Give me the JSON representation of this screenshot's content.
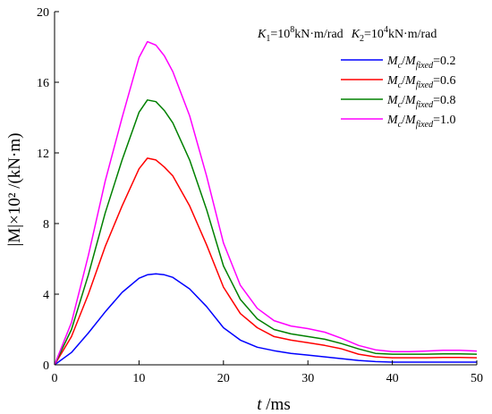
{
  "chart_data": {
    "type": "line",
    "xlabel": {
      "var": "t",
      "unit": " /ms"
    },
    "ylabel": {
      "text": "|M|×10² /(kN·m)"
    },
    "xlim": [
      0,
      50
    ],
    "ylim": [
      0,
      20
    ],
    "xticks": [
      "0",
      "10",
      "20",
      "30",
      "40",
      "50"
    ],
    "yticks": [
      "0",
      "4",
      "8",
      "12",
      "16",
      "20"
    ],
    "grid": false,
    "legend_position": "top-right",
    "annotation": {
      "k1_sym": "K",
      "k1_sub": "1",
      "k1_mid": "=10",
      "k1_exp": "8",
      "k1_unit": "kN·m/rad",
      "k2_sym": "K",
      "k2_sub": "2",
      "k2_mid": "=10",
      "k2_exp": "4",
      "k2_unit": "kN·m/rad"
    },
    "legend_labels": {
      "mc": "M",
      "mc_sub": "c",
      "slash": "/",
      "mf": "M",
      "mf_sub": "fixed"
    },
    "series": [
      {
        "name": "Mc/Mfixed=0.2",
        "value_label": "=0.2",
        "color": "#0000ff",
        "x": [
          0,
          2,
          4,
          6,
          8,
          10,
          11,
          12,
          13,
          14,
          16,
          18,
          20,
          22,
          24,
          26,
          28,
          30,
          32,
          34,
          36,
          38,
          40,
          42,
          44,
          46,
          48,
          50
        ],
        "y": [
          0,
          0.7,
          1.8,
          3.0,
          4.1,
          4.9,
          5.1,
          5.15,
          5.1,
          4.95,
          4.3,
          3.3,
          2.1,
          1.4,
          1.0,
          0.8,
          0.65,
          0.55,
          0.45,
          0.35,
          0.25,
          0.18,
          0.15,
          0.15,
          0.15,
          0.15,
          0.15,
          0.15
        ]
      },
      {
        "name": "Mc/Mfixed=0.6",
        "value_label": "=0.6",
        "color": "#ff0000",
        "x": [
          0,
          2,
          4,
          6,
          8,
          10,
          11,
          12,
          13,
          14,
          16,
          18,
          20,
          22,
          24,
          26,
          28,
          30,
          32,
          34,
          36,
          38,
          40,
          42,
          44,
          46,
          48,
          50
        ],
        "y": [
          0,
          1.6,
          4.0,
          6.7,
          9.0,
          11.1,
          11.7,
          11.6,
          11.2,
          10.7,
          9.0,
          6.8,
          4.4,
          2.9,
          2.1,
          1.6,
          1.4,
          1.25,
          1.1,
          0.9,
          0.6,
          0.45,
          0.4,
          0.4,
          0.4,
          0.42,
          0.42,
          0.4
        ]
      },
      {
        "name": "Mc/Mfixed=0.8",
        "value_label": "=0.8",
        "color": "#008000",
        "x": [
          0,
          2,
          4,
          6,
          8,
          10,
          11,
          12,
          13,
          14,
          16,
          18,
          20,
          22,
          24,
          26,
          28,
          30,
          32,
          34,
          36,
          38,
          40,
          42,
          44,
          46,
          48,
          50
        ],
        "y": [
          0,
          2.0,
          5.1,
          8.6,
          11.6,
          14.3,
          15.0,
          14.9,
          14.4,
          13.7,
          11.6,
          8.8,
          5.6,
          3.7,
          2.6,
          2.0,
          1.75,
          1.6,
          1.45,
          1.2,
          0.9,
          0.65,
          0.6,
          0.6,
          0.6,
          0.62,
          0.62,
          0.6
        ]
      },
      {
        "name": "Mc/Mfixed=1.0",
        "value_label": "=1.0",
        "color": "#ff00ff",
        "x": [
          0,
          2,
          4,
          6,
          8,
          10,
          11,
          12,
          13,
          14,
          16,
          18,
          20,
          22,
          24,
          26,
          28,
          30,
          32,
          34,
          36,
          38,
          40,
          42,
          44,
          46,
          48,
          50
        ],
        "y": [
          0,
          2.4,
          6.2,
          10.4,
          14.0,
          17.4,
          18.3,
          18.1,
          17.5,
          16.6,
          14.1,
          10.7,
          6.9,
          4.5,
          3.2,
          2.5,
          2.2,
          2.05,
          1.85,
          1.5,
          1.1,
          0.85,
          0.75,
          0.75,
          0.78,
          0.82,
          0.82,
          0.78
        ]
      }
    ]
  }
}
